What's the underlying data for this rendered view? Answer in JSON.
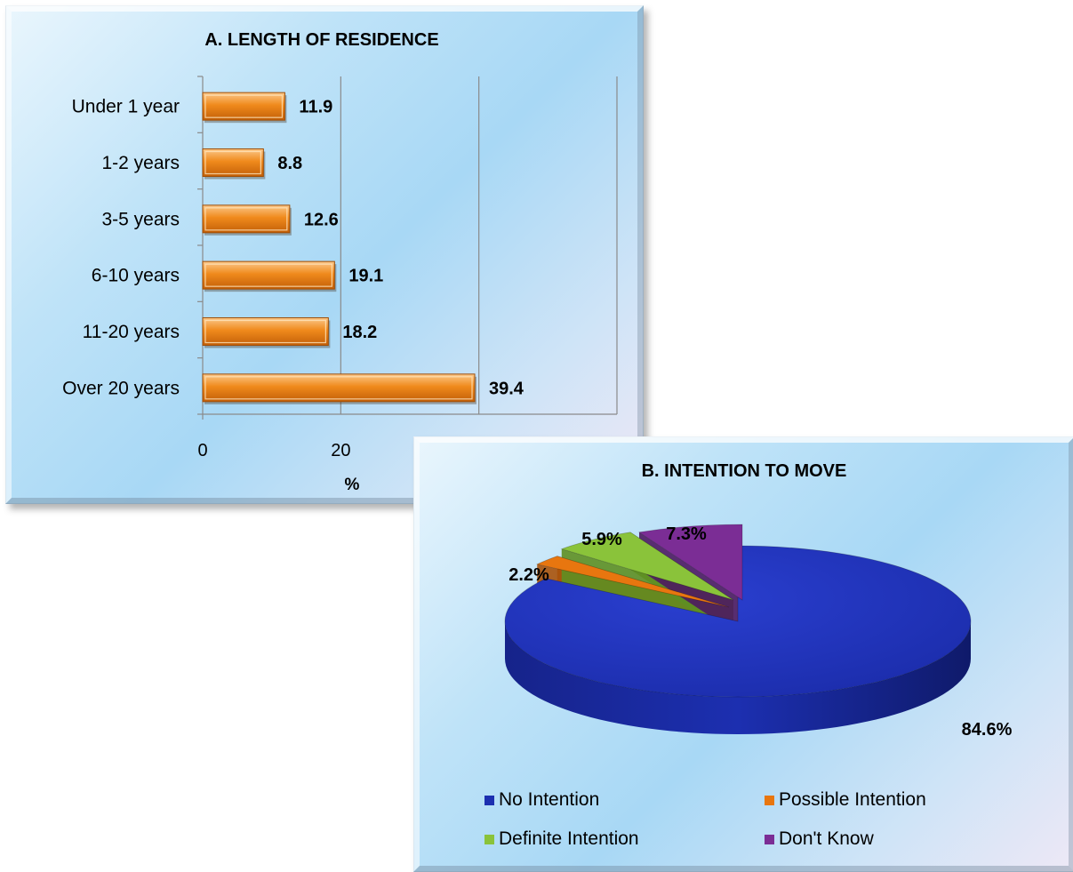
{
  "chart_data": [
    {
      "type": "bar",
      "orientation": "horizontal",
      "title": "A. LENGTH OF RESIDENCE",
      "categories": [
        "Under 1 year",
        "1-2 years",
        "3-5 years",
        "6-10 years",
        "11-20 years",
        "Over 20 years"
      ],
      "values": [
        11.9,
        8.8,
        12.6,
        19.1,
        18.2,
        39.4
      ],
      "value_labels": [
        "11.9",
        "8.8",
        "12.6",
        "19.1",
        "18.2",
        "39.4"
      ],
      "xlabel": "%",
      "ylabel": "",
      "xlim": [
        0,
        60
      ],
      "x_ticks": [
        "0",
        "20"
      ],
      "grid": true,
      "bar_color": "#f08a1c"
    },
    {
      "type": "pie",
      "style": "3d-exploded",
      "title": "B. INTENTION TO MOVE",
      "labels": [
        "No Intention",
        "Possible Intention",
        "Definite Intention",
        "Don't Know"
      ],
      "values": [
        84.6,
        2.2,
        5.9,
        7.3
      ],
      "value_labels": [
        "84.6%",
        "2.2%",
        "5.9%",
        "7.3%"
      ],
      "colors": [
        "#1c2fb0",
        "#e8760f",
        "#8ac33a",
        "#7b2d95"
      ],
      "legend_position": "bottom"
    }
  ]
}
